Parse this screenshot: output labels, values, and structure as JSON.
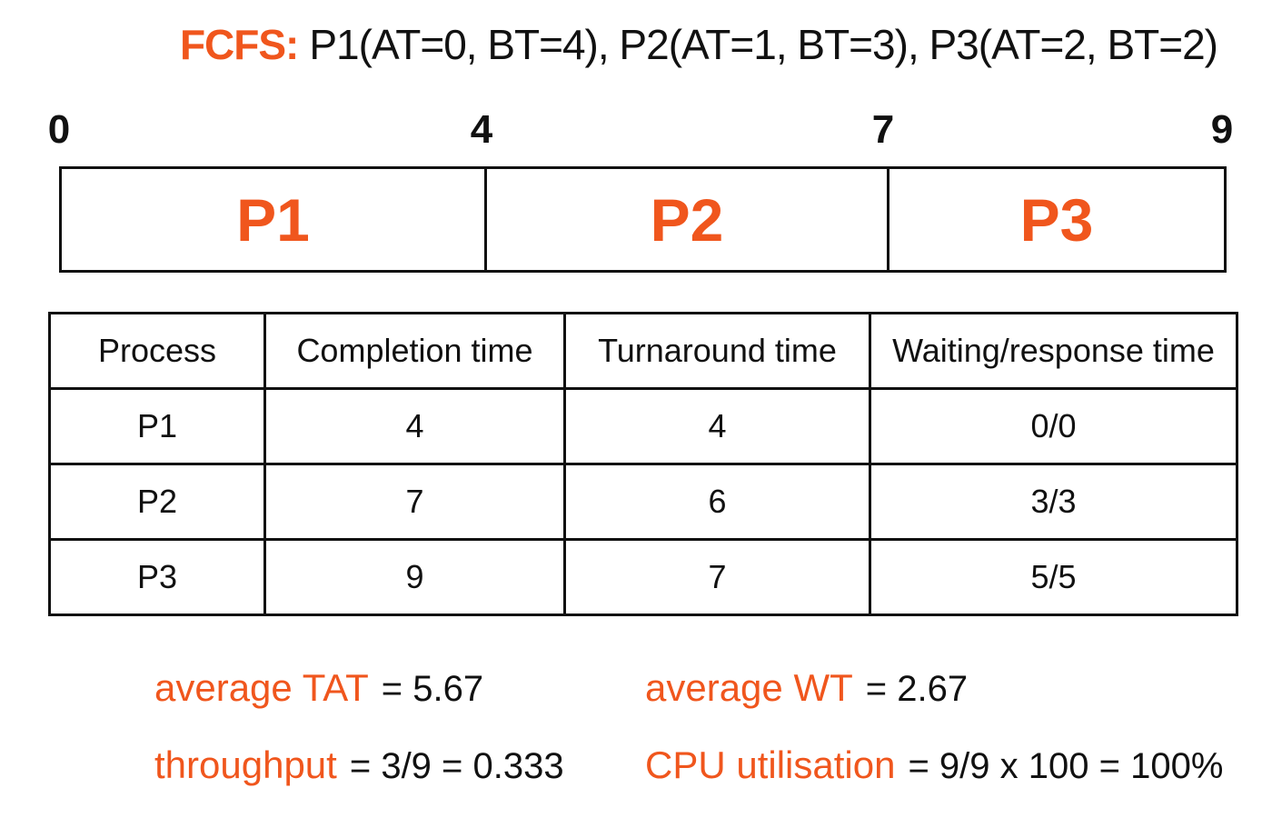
{
  "title": {
    "label": "FCFS:",
    "text": "P1(AT=0, BT=4), P2(AT=1, BT=3), P3(AT=2, BT=2)"
  },
  "gantt": {
    "ticks": [
      0,
      4,
      7,
      9
    ],
    "blocks": [
      "P1",
      "P2",
      "P3"
    ]
  },
  "table": {
    "header": [
      "Process",
      "Completion time",
      "Turnaround time",
      "Waiting/response time"
    ],
    "rows": [
      [
        "P1",
        "4",
        "4",
        "0/0"
      ],
      [
        "P2",
        "7",
        "6",
        "3/3"
      ],
      [
        "P3",
        "9",
        "7",
        "5/5"
      ]
    ]
  },
  "metrics": [
    {
      "label": "average TAT",
      "expr": "= 5.67"
    },
    {
      "label": "average WT",
      "expr": "= 2.67"
    },
    {
      "label": "throughput",
      "expr": "= 3/9 = 0.333"
    },
    {
      "label": "CPU utilisation",
      "expr": "= 9/9 x 100 = 100%"
    }
  ]
}
